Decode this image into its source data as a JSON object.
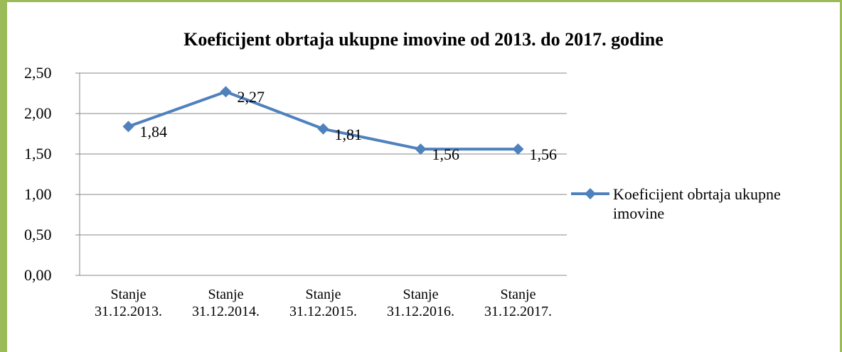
{
  "chart_data": {
    "type": "line",
    "title": "Koeficijent obrtaja ukupne imovine od 2013. do 2017. godine",
    "categories": [
      "Stanje 31.12.2013.",
      "Stanje 31.12.2014.",
      "Stanje 31.12.2015.",
      "Stanje 31.12.2016.",
      "Stanje 31.12.2017."
    ],
    "series": [
      {
        "name": "Koeficijent obrtaja ukupne imovine",
        "color": "#4f81bd",
        "values": [
          1.84,
          2.27,
          1.81,
          1.56,
          1.56
        ],
        "value_labels": [
          "1,84",
          "2,27",
          "1,81",
          "1,56",
          "1,56"
        ]
      }
    ],
    "ylim": [
      0,
      2.5
    ],
    "yticks": [
      {
        "value": 0,
        "label": "0,00"
      },
      {
        "value": 0.5,
        "label": "0,50"
      },
      {
        "value": 1,
        "label": "1,00"
      },
      {
        "value": 1.5,
        "label": "1,50"
      },
      {
        "value": 2,
        "label": "2,00"
      },
      {
        "value": 2.5,
        "label": "2,50"
      }
    ],
    "grid": true,
    "legend": "right"
  }
}
